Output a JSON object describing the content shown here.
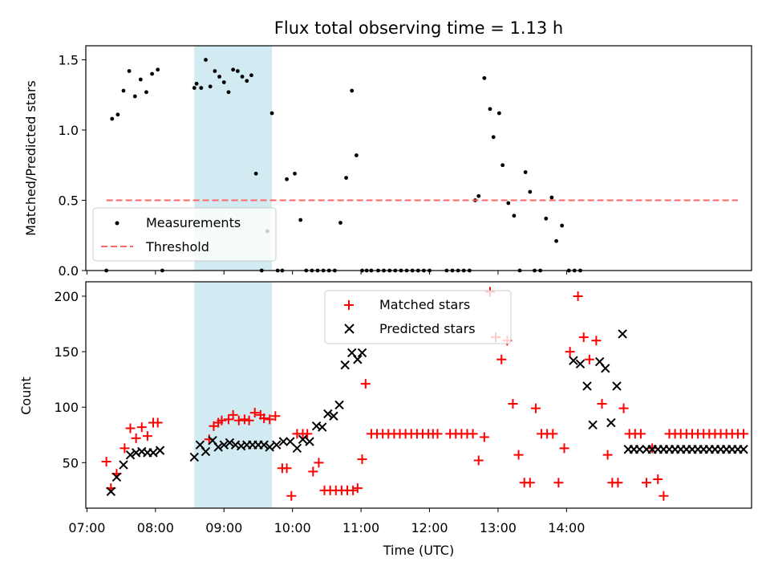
{
  "chart_data": {
    "type": "scatter",
    "title": "Flux total observing time = 1.13 h",
    "xlabel": "Time (UTC)",
    "x_unit": "minutes since 00:00 UTC",
    "xlim": [
      419,
      1002
    ],
    "xtick_values": [
      420,
      480,
      540,
      600,
      660,
      720,
      780,
      840
    ],
    "xtick_labels": [
      "07:00",
      "08:00",
      "09:00",
      "10:00",
      "11:00",
      "12:00",
      "13:00",
      "14:00"
    ],
    "highlight_span": [
      514,
      582
    ],
    "highlight_color": "#add8e6",
    "panels": [
      {
        "ylabel": "Matched/Predicted stars",
        "ylim": [
          0,
          1.6
        ],
        "ytick_values": [
          0,
          0.5,
          1.0,
          1.5
        ],
        "ytick_labels": [
          "0.0",
          "0.5",
          "1.0",
          "1.5"
        ],
        "legend": [
          "Measurements",
          "Threshold"
        ],
        "legend_loc": "lower left",
        "threshold": {
          "y": 0.5,
          "x_range": [
            437,
            990
          ],
          "color": "#ff6666"
        },
        "series": [
          {
            "name": "Measurements",
            "marker": "dot",
            "color": "#000000",
            "x": [
              437,
              442,
              447,
              452,
              457,
              462,
              467,
              472,
              477,
              482,
              486,
              514,
              516,
              520,
              524,
              528,
              532,
              536,
              540,
              544,
              548,
              552,
              556,
              560,
              564,
              568,
              573,
              578,
              582,
              587,
              591,
              595,
              602,
              607,
              612,
              617,
              622,
              627,
              632,
              637,
              642,
              647,
              652,
              656,
              661,
              665,
              669,
              675,
              680,
              685,
              690,
              695,
              700,
              705,
              710,
              715,
              720,
              735,
              740,
              745,
              750,
              755,
              760,
              763,
              768,
              773,
              776,
              781,
              784,
              789,
              794,
              799,
              804,
              808,
              812,
              817,
              822,
              827,
              831,
              836,
              842,
              847,
              852
            ],
            "y": [
              0,
              1.08,
              1.11,
              1.28,
              1.42,
              1.24,
              1.36,
              1.27,
              1.4,
              1.43,
              0,
              1.3,
              1.33,
              1.3,
              1.5,
              1.31,
              1.42,
              1.38,
              1.34,
              1.27,
              1.43,
              1.42,
              1.38,
              1.35,
              1.39,
              0.69,
              0,
              0.28,
              1.12,
              0,
              0,
              0.65,
              0.69,
              0.36,
              0,
              0,
              0,
              0,
              0,
              0,
              0.34,
              0.66,
              1.28,
              0.82,
              0,
              0,
              0,
              0,
              0,
              0,
              0,
              0,
              0,
              0,
              0,
              0,
              0,
              0,
              0,
              0,
              0,
              0,
              0.5,
              0.53,
              1.37,
              1.15,
              0.95,
              1.12,
              0.75,
              0.48,
              0.39,
              0,
              0.7,
              0.56,
              0,
              0,
              0.37,
              0.52,
              0.21,
              0.32,
              0,
              0,
              0
            ]
          }
        ]
      },
      {
        "ylabel": "Count",
        "ylim": [
          9,
          213
        ],
        "ytick_values": [
          50,
          100,
          150,
          200
        ],
        "ytick_labels": [
          "50",
          "100",
          "150",
          "200"
        ],
        "legend": [
          "Matched stars",
          "Predicted stars"
        ],
        "legend_loc": "upper center",
        "series": [
          {
            "name": "Matched stars",
            "marker": "plus",
            "color": "#ff0000",
            "x": [
              437,
              441,
              446,
              453,
              458,
              463,
              468,
              473,
              478,
              482,
              527,
              531,
              535,
              538,
              544,
              548,
              553,
              558,
              562,
              567,
              572,
              575,
              580,
              585,
              591,
              595,
              599,
              604,
              609,
              613,
              618,
              623,
              628,
              633,
              638,
              643,
              648,
              653,
              657,
              661,
              664,
              669,
              674,
              679,
              684,
              689,
              694,
              699,
              704,
              709,
              714,
              719,
              723,
              727,
              738,
              743,
              748,
              753,
              758,
              763,
              768,
              773,
              778,
              783,
              788,
              793,
              798,
              803,
              808,
              813,
              818,
              823,
              828,
              833,
              838
            ],
            "y": [
              51,
              27,
              40,
              63,
              81,
              72,
              82,
              74,
              86,
              86,
              71,
              83,
              86,
              88,
              89,
              93,
              88,
              89,
              88,
              95,
              93,
              90,
              89,
              92,
              45,
              45,
              20,
              76,
              76,
              76,
              42,
              50,
              25,
              25,
              25,
              25,
              25,
              25,
              27,
              53,
              121,
              76,
              76,
              76,
              76,
              76,
              76,
              76,
              76,
              76,
              76,
              76,
              76,
              76,
              76,
              76,
              76,
              76,
              76,
              52,
              73,
              204,
              163,
              143,
              160,
              103,
              57,
              32,
              32,
              99,
              76,
              76,
              76,
              32,
              63
            ]
          },
          {
            "name": "Predicted stars",
            "marker": "x",
            "color": "#000000",
            "x": [
              441,
              446,
              452,
              458,
              463,
              468,
              473,
              478,
              484,
              514,
              519,
              524,
              530,
              535,
              540,
              545,
              550,
              555,
              560,
              565,
              570,
              575,
              580,
              586,
              592,
              598,
              604,
              609,
              615,
              621,
              626,
              631,
              636,
              641,
              646,
              652,
              657,
              661
            ],
            "y": [
              24,
              37,
              48,
              57,
              59,
              60,
              59,
              59,
              61,
              55,
              66,
              60,
              70,
              64,
              66,
              68,
              66,
              65,
              66,
              66,
              66,
              66,
              64,
              66,
              69,
              69,
              63,
              71,
              69,
              83,
              82,
              94,
              92,
              102,
              138,
              149,
              143,
              149
            ]
          }
        ]
      }
    ]
  },
  "extra_points": {
    "matched_tail": {
      "x": [
        843,
        850,
        855,
        860,
        866,
        871,
        876,
        880,
        885,
        890,
        895,
        900,
        905,
        910,
        915,
        920,
        925,
        930,
        935,
        940,
        945,
        950,
        955,
        960,
        965,
        970,
        975,
        980,
        985,
        990,
        995
      ],
      "y": [
        150,
        200,
        163,
        143,
        160,
        103,
        57,
        32,
        32,
        99,
        76,
        76,
        76,
        32,
        63,
        35,
        20,
        76,
        76,
        76,
        76,
        76,
        76,
        76,
        76,
        76,
        76,
        76,
        76,
        76,
        76
      ]
    }
  }
}
